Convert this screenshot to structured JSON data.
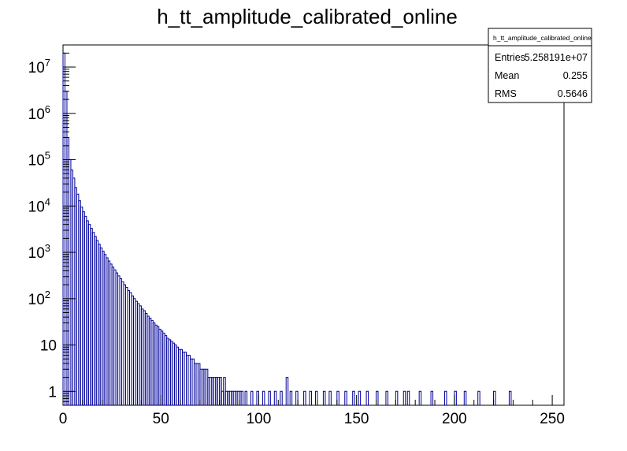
{
  "chart_data": {
    "type": "bar",
    "title": "h_tt_amplitude_calibrated_online",
    "xlabel": "",
    "ylabel": "",
    "xlim": [
      0,
      256
    ],
    "ylim": [
      0.5,
      30000000
    ],
    "log_y": true,
    "grid": false,
    "line_color": "#000099",
    "x_ticks": [
      {
        "value": 0,
        "label": "0"
      },
      {
        "value": 50,
        "label": "50"
      },
      {
        "value": 100,
        "label": "100"
      },
      {
        "value": 150,
        "label": "150"
      },
      {
        "value": 200,
        "label": "200"
      },
      {
        "value": 250,
        "label": "250"
      }
    ],
    "y_ticks": [
      {
        "value": 1,
        "label": "1",
        "sup": ""
      },
      {
        "value": 10,
        "label": "10",
        "sup": ""
      },
      {
        "value": 100,
        "label": "10",
        "sup": "2"
      },
      {
        "value": 1000,
        "label": "10",
        "sup": "3"
      },
      {
        "value": 10000,
        "label": "10",
        "sup": "4"
      },
      {
        "value": 100000,
        "label": "10",
        "sup": "5"
      },
      {
        "value": 1000000,
        "label": "10",
        "sup": "6"
      },
      {
        "value": 10000000,
        "label": "10",
        "sup": "7"
      }
    ],
    "bin_width": 1,
    "bins": [
      [
        0,
        20000000
      ],
      [
        1,
        3000000
      ],
      [
        2,
        300000
      ],
      [
        3,
        100000
      ],
      [
        4,
        60000
      ],
      [
        5,
        40000
      ],
      [
        6,
        25000
      ],
      [
        7,
        18000
      ],
      [
        8,
        13000
      ],
      [
        9,
        9500
      ],
      [
        10,
        7500
      ],
      [
        11,
        6000
      ],
      [
        12,
        4800
      ],
      [
        13,
        4000
      ],
      [
        14,
        3300
      ],
      [
        15,
        2700
      ],
      [
        16,
        2200
      ],
      [
        17,
        1800
      ],
      [
        18,
        1500
      ],
      [
        19,
        1250
      ],
      [
        20,
        1050
      ],
      [
        21,
        900
      ],
      [
        22,
        760
      ],
      [
        23,
        650
      ],
      [
        24,
        560
      ],
      [
        25,
        480
      ],
      [
        26,
        420
      ],
      [
        27,
        360
      ],
      [
        28,
        310
      ],
      [
        29,
        270
      ],
      [
        30,
        230
      ],
      [
        31,
        200
      ],
      [
        32,
        175
      ],
      [
        33,
        150
      ],
      [
        34,
        135
      ],
      [
        35,
        115
      ],
      [
        36,
        100
      ],
      [
        37,
        88
      ],
      [
        38,
        78
      ],
      [
        39,
        70
      ],
      [
        40,
        60
      ],
      [
        41,
        55
      ],
      [
        42,
        48
      ],
      [
        43,
        42
      ],
      [
        44,
        38
      ],
      [
        45,
        34
      ],
      [
        46,
        30
      ],
      [
        47,
        27
      ],
      [
        48,
        25
      ],
      [
        49,
        22
      ],
      [
        50,
        20
      ],
      [
        51,
        18
      ],
      [
        52,
        16
      ],
      [
        53,
        14
      ],
      [
        54,
        13
      ],
      [
        55,
        12
      ],
      [
        56,
        11
      ],
      [
        57,
        10
      ],
      [
        58,
        9
      ],
      [
        59,
        8
      ],
      [
        60,
        8
      ],
      [
        61,
        7
      ],
      [
        62,
        7
      ],
      [
        63,
        6
      ],
      [
        64,
        6
      ],
      [
        65,
        5
      ],
      [
        66,
        5
      ],
      [
        67,
        4
      ],
      [
        68,
        4
      ],
      [
        69,
        4
      ],
      [
        70,
        3
      ],
      [
        71,
        3
      ],
      [
        72,
        3
      ],
      [
        73,
        3
      ],
      [
        74,
        2
      ],
      [
        75,
        2
      ],
      [
        76,
        2
      ],
      [
        77,
        2
      ],
      [
        78,
        2
      ],
      [
        79,
        2
      ],
      [
        80,
        2
      ],
      [
        81,
        1
      ],
      [
        82,
        2
      ],
      [
        83,
        1
      ],
      [
        84,
        1
      ],
      [
        85,
        1
      ],
      [
        86,
        1
      ],
      [
        87,
        1
      ],
      [
        88,
        1
      ],
      [
        89,
        1
      ],
      [
        90,
        1
      ],
      [
        91,
        1
      ],
      [
        93,
        1
      ],
      [
        96,
        1
      ],
      [
        99,
        1
      ],
      [
        102,
        1
      ],
      [
        105,
        1
      ],
      [
        108,
        1
      ],
      [
        111,
        1
      ],
      [
        114,
        2
      ],
      [
        116,
        1
      ],
      [
        119,
        1
      ],
      [
        123,
        1
      ],
      [
        126,
        1
      ],
      [
        129,
        1
      ],
      [
        133,
        1
      ],
      [
        136,
        1
      ],
      [
        140,
        1
      ],
      [
        144,
        1
      ],
      [
        148,
        1
      ],
      [
        151,
        1
      ],
      [
        155,
        1
      ],
      [
        160,
        1
      ],
      [
        165,
        1
      ],
      [
        170,
        1
      ],
      [
        174,
        1
      ],
      [
        176,
        1
      ],
      [
        182,
        1
      ],
      [
        188,
        1
      ],
      [
        195,
        1
      ],
      [
        200,
        1
      ],
      [
        205,
        1
      ],
      [
        212,
        1
      ],
      [
        220,
        1
      ],
      [
        228,
        1
      ]
    ],
    "stats": {
      "name": "h_tt_amplitude_calibrated_online",
      "rows": [
        {
          "label": "Entries",
          "value": "5.258191e+07"
        },
        {
          "label": "Mean",
          "value": "0.255"
        },
        {
          "label": "RMS",
          "value": "0.5646"
        }
      ]
    }
  }
}
